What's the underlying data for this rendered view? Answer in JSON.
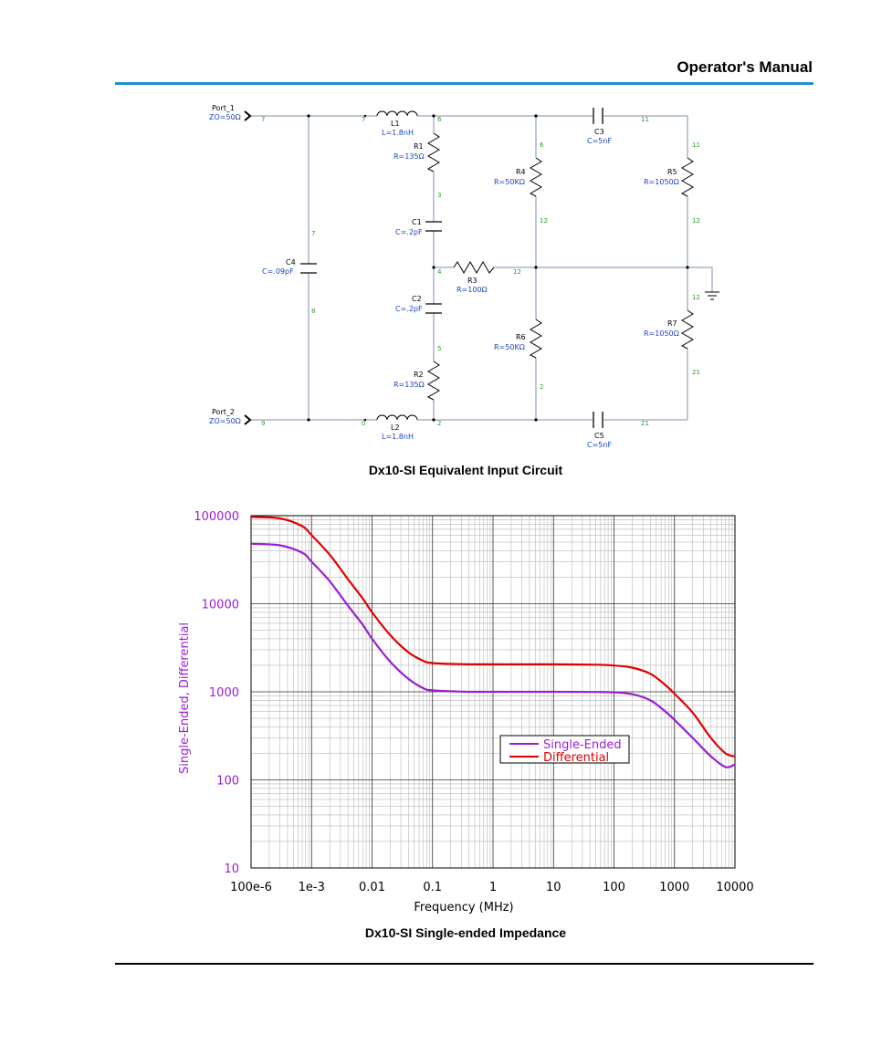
{
  "header": {
    "title": "Operator's Manual"
  },
  "circuit": {
    "caption": "Dx10-SI Equivalent Input Circuit",
    "ports": [
      {
        "name": "Port_1",
        "value": "ZO=50Ω"
      },
      {
        "name": "Port_2",
        "value": "ZO=50Ω"
      }
    ],
    "components": [
      {
        "name": "L1",
        "value": "L=1.8nH"
      },
      {
        "name": "L2",
        "value": "L=1.8nH"
      },
      {
        "name": "R1",
        "value": "R=135Ω"
      },
      {
        "name": "R2",
        "value": "R=135Ω"
      },
      {
        "name": "C1",
        "value": "C=.2pF"
      },
      {
        "name": "C2",
        "value": "C=.2pF"
      },
      {
        "name": "R3",
        "value": "R=100Ω"
      },
      {
        "name": "C3",
        "value": "C=5nF"
      },
      {
        "name": "C5",
        "value": "C=5nF"
      },
      {
        "name": "R4",
        "value": "R=50KΩ"
      },
      {
        "name": "R6",
        "value": "R=50KΩ"
      },
      {
        "name": "R5",
        "value": "R=1050Ω"
      },
      {
        "name": "R7",
        "value": "R=1050Ω"
      },
      {
        "name": "C4",
        "value": "C=.09pF"
      }
    ],
    "nodes": [
      "7",
      "7",
      "6",
      "11",
      "6",
      "11",
      "3",
      "12",
      "12",
      "7",
      "4",
      "12",
      "12",
      "8",
      "5",
      "2",
      "21",
      "9",
      "0",
      "2",
      "21"
    ]
  },
  "chart": {
    "caption": "Dx10-SI Single-ended Impedance",
    "colors": {
      "single": "#9b1fd0",
      "differential": "#e00000"
    }
  },
  "chart_data": {
    "type": "line",
    "xlabel": "Frequency (MHz)",
    "ylabel": "Single-Ended, Differential",
    "xscale": "log",
    "yscale": "log",
    "xlim": [
      0.0001,
      10000
    ],
    "ylim": [
      10,
      100000
    ],
    "x_tick_labels": [
      "100e-6",
      "1e-3",
      "0.01",
      "0.1",
      "1",
      "10",
      "100",
      "1000",
      "10000"
    ],
    "y_tick_labels": [
      "100000",
      "10000",
      "1000",
      "100",
      "10"
    ],
    "grid": true,
    "legend": "center-right",
    "series": [
      {
        "name": "Single-Ended",
        "x": [
          0.0001,
          0.0003,
          0.0007,
          0.001,
          0.002,
          0.004,
          0.007,
          0.01,
          0.02,
          0.04,
          0.07,
          0.1,
          0.3,
          1,
          10,
          50,
          100,
          200,
          400,
          700,
          1000,
          2000,
          4000,
          7000,
          10000
        ],
        "y": [
          48000,
          46000,
          38000,
          30000,
          18000,
          9500,
          5800,
          4000,
          2200,
          1400,
          1100,
          1040,
          1005,
          1000,
          1000,
          995,
          985,
          940,
          800,
          600,
          480,
          300,
          185,
          140,
          150
        ]
      },
      {
        "name": "Differential",
        "x": [
          0.0001,
          0.0003,
          0.0007,
          0.001,
          0.002,
          0.004,
          0.007,
          0.01,
          0.02,
          0.04,
          0.07,
          0.1,
          0.3,
          1,
          10,
          50,
          100,
          200,
          400,
          700,
          1000,
          2000,
          4000,
          7000,
          10000
        ],
        "y": [
          97000,
          93000,
          76000,
          60000,
          36000,
          19000,
          11500,
          8000,
          4400,
          2800,
          2250,
          2120,
          2060,
          2050,
          2050,
          2030,
          1990,
          1880,
          1600,
          1200,
          950,
          580,
          300,
          200,
          185
        ]
      }
    ]
  }
}
